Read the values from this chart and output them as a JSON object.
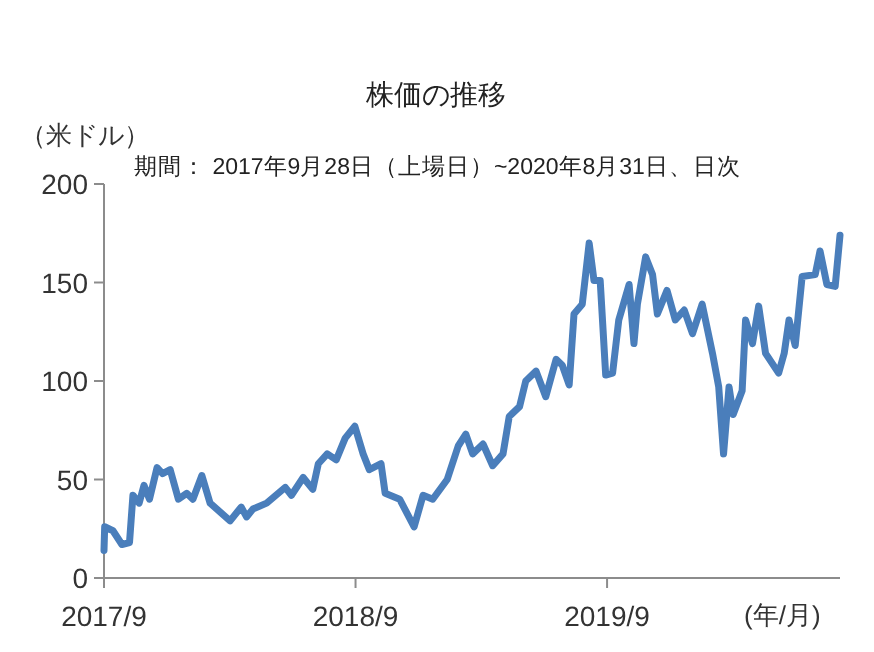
{
  "chart_data": {
    "type": "line",
    "title": "株価の推移",
    "subtitle": "期間： 2017年9月28日（上場日）~2020年8月31日、日次",
    "ylabel": "（米ドル）",
    "xlabel": "(年/月)",
    "xlim": [
      "2017-09-28",
      "2020-08-31"
    ],
    "xticks": [
      {
        "value": "2017-09-28",
        "label": "2017/9"
      },
      {
        "value": "2018-09-28",
        "label": "2018/9"
      },
      {
        "value": "2019-09-28",
        "label": "2019/9"
      }
    ],
    "ylim": [
      0,
      200
    ],
    "yticks": [
      0,
      50,
      100,
      150,
      200
    ],
    "marker": "none",
    "line_style": "solid",
    "series": [
      {
        "color": "#4a7ebb",
        "x": [
          "2017-09-28",
          "2017-09-29",
          "2017-10-11",
          "2017-10-24",
          "2017-11-04",
          "2017-11-09",
          "2017-11-18",
          "2017-11-25",
          "2017-12-03",
          "2017-12-14",
          "2017-12-22",
          "2018-01-02",
          "2018-01-14",
          "2018-01-26",
          "2018-02-04",
          "2018-02-17",
          "2018-03-01",
          "2018-03-30",
          "2018-04-15",
          "2018-04-23",
          "2018-05-02",
          "2018-05-22",
          "2018-06-18",
          "2018-06-27",
          "2018-07-14",
          "2018-07-28",
          "2018-08-05",
          "2018-08-18",
          "2018-08-31",
          "2018-09-13",
          "2018-09-27",
          "2018-10-09",
          "2018-10-18",
          "2018-11-04",
          "2018-11-10",
          "2018-12-01",
          "2018-12-22",
          "2019-01-04",
          "2019-01-18",
          "2019-02-08",
          "2019-02-24",
          "2019-03-07",
          "2019-03-17",
          "2019-04-01",
          "2019-04-15",
          "2019-04-30",
          "2019-05-09",
          "2019-05-24",
          "2019-06-02",
          "2019-06-17",
          "2019-07-01",
          "2019-07-16",
          "2019-07-25",
          "2019-08-04",
          "2019-08-11",
          "2019-08-23",
          "2019-09-02",
          "2019-09-09",
          "2019-09-18",
          "2019-09-26",
          "2019-10-06",
          "2019-10-15",
          "2019-10-30",
          "2019-11-06",
          "2019-11-11",
          "2019-11-23",
          "2019-12-03",
          "2019-12-10",
          "2019-12-24",
          "2020-01-05",
          "2020-01-18",
          "2020-01-30",
          "2020-02-13",
          "2020-02-28",
          "2020-03-08",
          "2020-03-15",
          "2020-03-23",
          "2020-03-29",
          "2020-04-11",
          "2020-04-16",
          "2020-04-26",
          "2020-05-05",
          "2020-05-15",
          "2020-06-03",
          "2020-06-11",
          "2020-06-18",
          "2020-06-27",
          "2020-07-07",
          "2020-07-26",
          "2020-08-02",
          "2020-08-12",
          "2020-08-24",
          "2020-08-31"
        ],
        "values": [
          14,
          26,
          24,
          17,
          18,
          42,
          38,
          47,
          40,
          56,
          53,
          55,
          40,
          43,
          40,
          52,
          38,
          29,
          36,
          31,
          35,
          38,
          46,
          42,
          51,
          45,
          58,
          63,
          60,
          71,
          77,
          63,
          55,
          58,
          43,
          40,
          26,
          42,
          40,
          50,
          67,
          73,
          63,
          68,
          57,
          63,
          82,
          87,
          100,
          105,
          92,
          111,
          108,
          98,
          134,
          139,
          170,
          151,
          151,
          103,
          104,
          131,
          149,
          119,
          139,
          163,
          154,
          134,
          146,
          131,
          136,
          124,
          139,
          114,
          97,
          63,
          97,
          83,
          95,
          131,
          119,
          138,
          114,
          104,
          114,
          131,
          118,
          153,
          154,
          166,
          149,
          148,
          174
        ]
      }
    ]
  }
}
